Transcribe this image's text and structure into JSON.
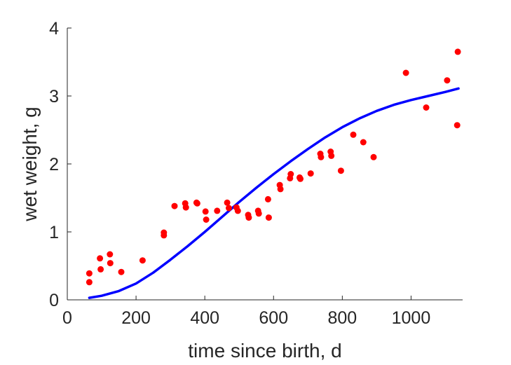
{
  "chart_data": {
    "type": "scatter",
    "xlabel": "time since birth, d",
    "ylabel": "wet weight, g",
    "xlim": [
      0,
      1150
    ],
    "ylim": [
      0,
      4
    ],
    "xticks": [
      "0",
      "200",
      "400",
      "600",
      "800",
      "1000"
    ],
    "yticks": [
      "0",
      "1",
      "2",
      "3",
      "4"
    ],
    "grid": false,
    "colors": {
      "points": "#ff0000",
      "curve": "#0000ff",
      "axes": "#262626"
    },
    "series": [
      {
        "type": "scatter",
        "x": [
          64,
          64,
          95,
          97,
          124,
          125,
          157,
          219,
          281,
          281,
          312,
          343,
          345,
          376,
          378,
          402,
          404,
          436,
          465,
          470,
          492,
          496,
          526,
          528,
          555,
          557,
          584,
          586,
          618,
          620,
          648,
          650,
          676,
          678,
          708,
          736,
          738,
          766,
          768,
          796,
          832,
          861,
          891,
          985,
          1044,
          1105,
          1134,
          1136
        ],
        "y": [
          0.39,
          0.26,
          0.61,
          0.45,
          0.67,
          0.54,
          0.41,
          0.58,
          0.99,
          0.95,
          1.38,
          1.42,
          1.36,
          1.43,
          1.42,
          1.3,
          1.18,
          1.31,
          1.43,
          1.35,
          1.36,
          1.31,
          1.25,
          1.21,
          1.31,
          1.27,
          1.48,
          1.21,
          1.69,
          1.63,
          1.79,
          1.85,
          1.8,
          1.78,
          1.86,
          2.15,
          2.1,
          2.18,
          2.12,
          1.9,
          2.43,
          2.32,
          2.1,
          3.34,
          2.83,
          3.23,
          2.57,
          3.65
        ]
      },
      {
        "type": "line",
        "x": [
          64,
          100,
          150,
          200,
          250,
          300,
          350,
          400,
          450,
          500,
          550,
          600,
          650,
          700,
          750,
          800,
          850,
          900,
          950,
          1000,
          1050,
          1100,
          1138
        ],
        "y": [
          0.03,
          0.06,
          0.13,
          0.24,
          0.4,
          0.59,
          0.79,
          1.0,
          1.22,
          1.44,
          1.65,
          1.85,
          2.04,
          2.22,
          2.39,
          2.54,
          2.67,
          2.78,
          2.87,
          2.94,
          3.0,
          3.06,
          3.11
        ]
      }
    ]
  }
}
